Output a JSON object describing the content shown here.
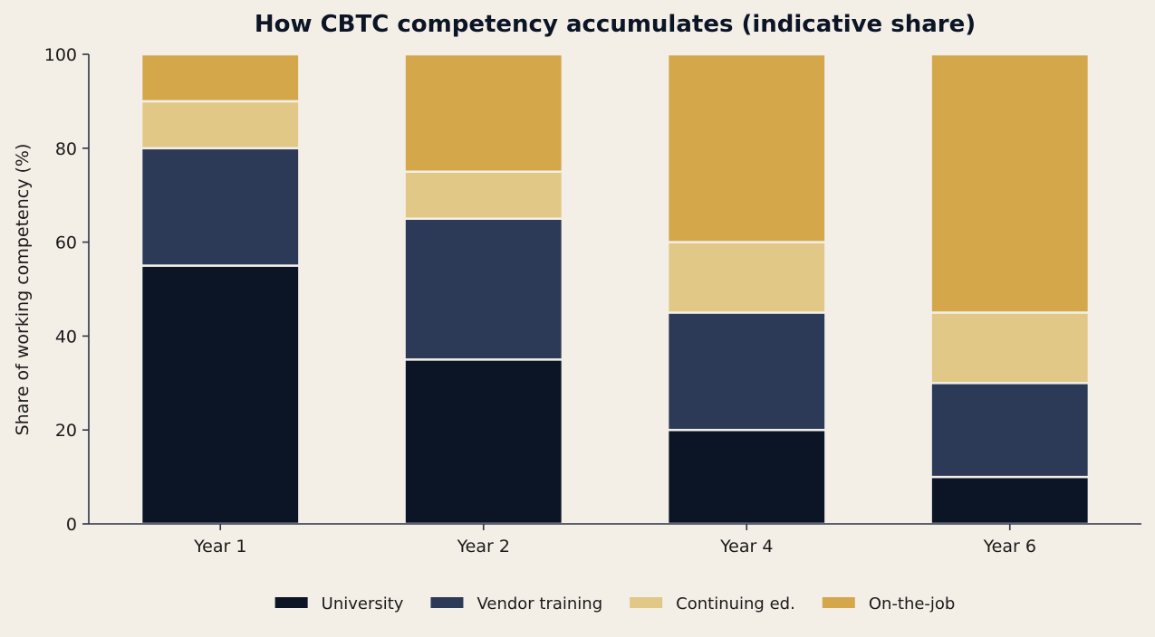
{
  "chart_data": {
    "type": "bar",
    "stacked": true,
    "title": "How CBTC competency accumulates (indicative share)",
    "xlabel": "",
    "ylabel": "Share of working competency (%)",
    "categories": [
      "Year 1",
      "Year 2",
      "Year 4",
      "Year 6"
    ],
    "ylim": [
      0,
      100
    ],
    "yticks": [
      "0",
      "20",
      "40",
      "60",
      "80",
      "100"
    ],
    "series": [
      {
        "name": "University",
        "values": [
          55,
          35,
          20,
          10
        ],
        "color": "#0b1526"
      },
      {
        "name": "Vendor training",
        "values": [
          25,
          30,
          25,
          20
        ],
        "color": "#2c3a57"
      },
      {
        "name": "Continuing ed.",
        "values": [
          10,
          10,
          15,
          15
        ],
        "color": "#e2c887"
      },
      {
        "name": "On-the-job",
        "values": [
          10,
          25,
          40,
          55
        ],
        "color": "#d4a74b"
      }
    ],
    "grid": false,
    "legend_position": "bottom-center",
    "background": "#f3efe7",
    "axis_color": "#2b3445"
  }
}
